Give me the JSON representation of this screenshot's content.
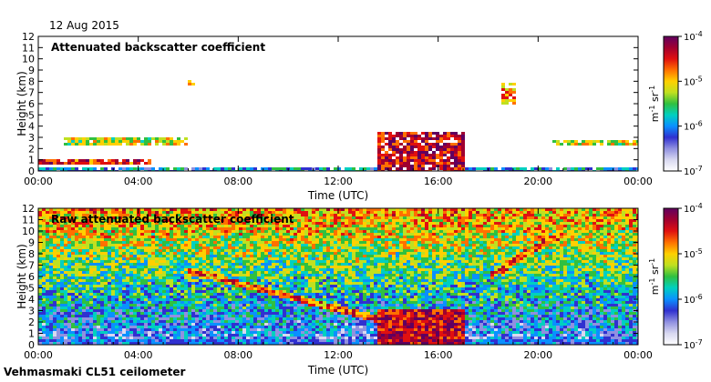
{
  "date": "12 Aug 2015",
  "footer": "Vehmasmaki CL51 ceilometer",
  "colors": {
    "rainbow": [
      "#ffffff",
      "#d8d8f0",
      "#9090e0",
      "#3030d0",
      "#0a90ff",
      "#00d0c0",
      "#30c040",
      "#c0e020",
      "#ffd000",
      "#ff7000",
      "#e01010",
      "#a00030",
      "#600060"
    ]
  },
  "chart_data": [
    {
      "type": "heatmap",
      "title": "Attenuated backscatter coefficient",
      "xlabel": "Time (UTC)",
      "ylabel": "Height (km)",
      "xlim": [
        0,
        24
      ],
      "ylim": [
        0,
        12
      ],
      "xticks": [
        "00:00",
        "04:00",
        "08:00",
        "12:00",
        "16:00",
        "20:00",
        "00:00"
      ],
      "yticks": [
        "0",
        "1",
        "2",
        "3",
        "4",
        "5",
        "6",
        "7",
        "8",
        "9",
        "10",
        "11",
        "12"
      ],
      "colorbar": {
        "label": "m-1 sr-1",
        "scale": "log",
        "ticks": [
          "10-7",
          "10-6",
          "10-5",
          "10-4"
        ]
      },
      "features": [
        {
          "name": "boundary-layer",
          "t0": 0,
          "t1": 24,
          "h0": 0,
          "h1": 0.6,
          "level": 0.35
        },
        {
          "name": "low-cloud",
          "t0": 0,
          "t1": 4.5,
          "h0": 0.8,
          "h1": 1.1,
          "level": 0.8
        },
        {
          "name": "mid-layer",
          "t0": 1,
          "t1": 6,
          "h0": 2.4,
          "h1": 3.2,
          "level": 0.6
        },
        {
          "name": "rain-shower",
          "t0": 13.6,
          "t1": 17,
          "h0": 0,
          "h1": 3.5,
          "level": 0.85
        },
        {
          "name": "elevated-cloud",
          "t0": 18.5,
          "t1": 19,
          "h0": 6,
          "h1": 8,
          "level": 0.7
        },
        {
          "name": "cloud-8km",
          "t0": 5.9,
          "t1": 6.2,
          "h0": 7.8,
          "h1": 8.2,
          "level": 0.7
        },
        {
          "name": "evening-layer",
          "t0": 20.5,
          "t1": 24,
          "h0": 2.4,
          "h1": 2.8,
          "level": 0.6
        }
      ]
    },
    {
      "type": "heatmap",
      "title": "Raw attenuated backscatter coefficient",
      "xlabel": "Time (UTC)",
      "ylabel": "Height (km)",
      "xlim": [
        0,
        24
      ],
      "ylim": [
        0,
        12
      ],
      "xticks": [
        "00:00",
        "04:00",
        "08:00",
        "12:00",
        "16:00",
        "20:00",
        "00:00"
      ],
      "yticks": [
        "0",
        "1",
        "2",
        "3",
        "4",
        "5",
        "6",
        "7",
        "8",
        "9",
        "10",
        "11",
        "12"
      ],
      "colorbar": {
        "label": "m-1 sr-1",
        "scale": "log",
        "ticks": [
          "10-7",
          "10-6",
          "10-5",
          "10-4"
        ]
      },
      "features": [
        {
          "name": "noise-background",
          "t0": 0,
          "t1": 24,
          "h0": 0,
          "h1": 12,
          "level": 0.5
        },
        {
          "name": "elevated-layer-descending",
          "t0": 6,
          "t1": 14,
          "h0": 2,
          "h1": 6.5,
          "level": 0.75
        },
        {
          "name": "rain-shower",
          "t0": 13.6,
          "t1": 17,
          "h0": 0,
          "h1": 3,
          "level": 0.85
        },
        {
          "name": "rising-layer",
          "t0": 18,
          "t1": 21,
          "h0": 6,
          "h1": 10,
          "level": 0.75
        }
      ]
    }
  ]
}
